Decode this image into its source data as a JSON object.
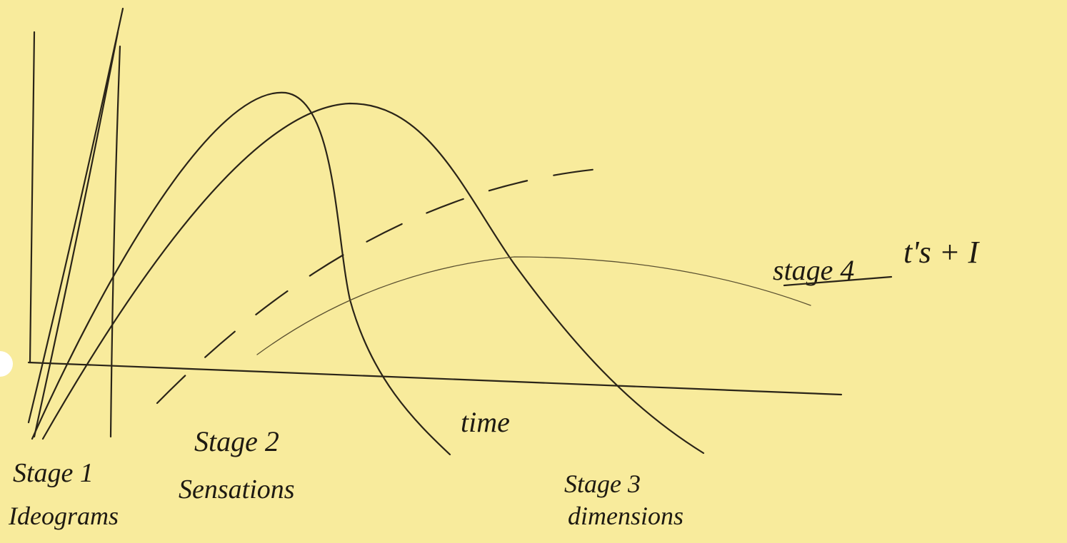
{
  "diagram": {
    "axis_label": "time",
    "labels": [
      {
        "title": "Stage 1",
        "subtitle": "Ideograms"
      },
      {
        "title": "Stage 2",
        "subtitle": "Sensations"
      },
      {
        "title": "Stage 3",
        "subtitle": "dimensions"
      },
      {
        "title": "stage 4",
        "subtitle": "t's + I"
      }
    ]
  }
}
